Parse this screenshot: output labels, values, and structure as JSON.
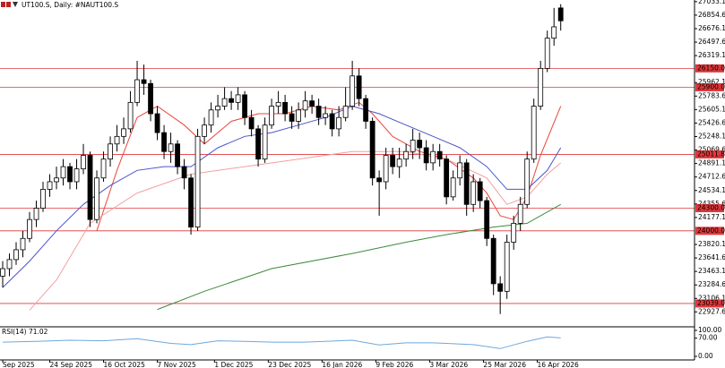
{
  "chart_data": {
    "type": "candlestick",
    "title": "UT100.S, Daily: #NAUT100.S",
    "open": [
      23400,
      23500,
      23620,
      23750,
      23900,
      24150,
      24300,
      24550,
      24650,
      24700,
      24850,
      24650,
      24820,
      25000,
      24150,
      24700,
      24950,
      25150,
      25250,
      25350,
      25700,
      26000,
      25950,
      25550,
      25300,
      25050,
      25150,
      24850,
      24700,
      24050,
      25250,
      25400,
      25600,
      25650,
      25750,
      25700,
      25800,
      25500,
      25350,
      24950,
      25400,
      25650,
      25700,
      25550,
      25450,
      25600,
      25720,
      25650,
      25500,
      25550,
      25350,
      25500,
      25650,
      26050,
      25750,
      25450,
      24700,
      24650,
      25000,
      24850,
      24950,
      25050,
      25200,
      25100,
      24900,
      25050,
      24950,
      24450,
      24700,
      24900,
      24350,
      24650,
      24400,
      23900,
      23300,
      23200,
      23850,
      24100,
      24350,
      24950,
      25650,
      26150,
      26550,
      26950
    ],
    "high": [
      23600,
      23700,
      23850,
      24000,
      24250,
      24400,
      24650,
      24750,
      24850,
      24950,
      24900,
      24950,
      25150,
      25050,
      24800,
      25050,
      25250,
      25400,
      25500,
      25850,
      26250,
      26200,
      26000,
      25650,
      25400,
      25300,
      25200,
      24950,
      24750,
      25350,
      25500,
      25700,
      25800,
      25900,
      25850,
      25900,
      25850,
      25600,
      25400,
      25500,
      25750,
      25850,
      25800,
      25650,
      25700,
      25850,
      25800,
      25750,
      25650,
      25600,
      25650,
      25900,
      26250,
      26150,
      25800,
      25500,
      24800,
      25100,
      25100,
      25100,
      25150,
      25350,
      25300,
      25200,
      25150,
      25150,
      25000,
      24800,
      25000,
      24950,
      24750,
      24700,
      24450,
      23950,
      23400,
      23950,
      24200,
      24450,
      25050,
      25750,
      26250,
      26650,
      26950,
      27000
    ],
    "low": [
      23250,
      23400,
      23550,
      23650,
      23850,
      24050,
      24250,
      24450,
      24550,
      24600,
      24550,
      24550,
      24750,
      24050,
      24100,
      24650,
      24850,
      25050,
      25150,
      25300,
      25650,
      25800,
      25450,
      25200,
      24950,
      24900,
      24750,
      24550,
      23950,
      24000,
      25150,
      25300,
      25500,
      25600,
      25600,
      25600,
      25400,
      25250,
      24850,
      24900,
      25350,
      25550,
      25450,
      25350,
      25350,
      25500,
      25550,
      25400,
      25400,
      25250,
      25250,
      25450,
      25600,
      25650,
      25350,
      24600,
      24200,
      24550,
      24750,
      24700,
      24850,
      24950,
      24950,
      24800,
      24800,
      24850,
      24350,
      24400,
      24600,
      24200,
      24250,
      24300,
      23800,
      23150,
      22900,
      23100,
      23750,
      24000,
      24300,
      24900,
      25600,
      26100,
      26450,
      26650
    ],
    "close": [
      23500,
      23620,
      23750,
      23900,
      24150,
      24300,
      24550,
      24650,
      24700,
      24850,
      24650,
      24820,
      25000,
      24150,
      24700,
      24950,
      25150,
      25250,
      25350,
      25700,
      26000,
      25950,
      25550,
      25300,
      25050,
      25150,
      24850,
      24700,
      24050,
      25250,
      25400,
      25600,
      25650,
      25750,
      25700,
      25800,
      25500,
      25350,
      24950,
      25400,
      25650,
      25700,
      25550,
      25450,
      25600,
      25720,
      25650,
      25500,
      25550,
      25350,
      25500,
      25650,
      26050,
      25750,
      25450,
      24700,
      24650,
      25000,
      24850,
      24950,
      25050,
      25200,
      25100,
      24900,
      25050,
      24950,
      24450,
      24700,
      24900,
      24350,
      24650,
      24400,
      23900,
      23300,
      23200,
      23850,
      24100,
      24350,
      24950,
      25650,
      26150,
      26550,
      26700,
      26780
    ],
    "up_color": "#ffffff",
    "down_color": "#000000",
    "xlim": [
      -0.4,
      102.9
    ],
    "xticks": [
      {
        "value": 0,
        "label": "Sep 2025"
      },
      {
        "value": 7,
        "label": "24 Sep 2025"
      },
      {
        "value": 15,
        "label": "16 Oct 2025"
      },
      {
        "value": 23,
        "label": "7 Nov 2025"
      },
      {
        "value": 31.5,
        "label": "1 Dec 2025"
      },
      {
        "value": 39.5,
        "label": "23 Dec 2025"
      },
      {
        "value": 47.5,
        "label": "16 Jan 2026"
      },
      {
        "value": 55.5,
        "label": "9 Feb 2026"
      },
      {
        "value": 63.5,
        "label": "3 Mar 2026"
      },
      {
        "value": 71.5,
        "label": "25 Mar 2026"
      },
      {
        "value": 79.5,
        "label": "16 Apr 2026"
      }
    ],
    "ylim": [
      22742,
      27055
    ],
    "yticks": [
      27033.1,
      26854.6,
      26676.1,
      26497.6,
      26319.1,
      25962.1,
      25783.6,
      25605.1,
      25426.6,
      25248.1,
      25069.6,
      24891.1,
      24712.6,
      24534.1,
      24355.6,
      24177.1,
      23820.1,
      23641.6,
      23463.1,
      23284.6,
      23106.1,
      22927.6
    ],
    "levels": {
      "color": "#e0383b",
      "values": [
        {
          "value": 26150,
          "label": "26150.0"
        },
        {
          "value": 25900,
          "label": "25900.0"
        },
        {
          "value": 25011.8,
          "label": "25011.8"
        },
        {
          "value": 24300,
          "label": "24300.0"
        },
        {
          "value": 24000,
          "label": "24000.0"
        },
        {
          "value": 23039,
          "label": "23039.0"
        }
      ]
    },
    "overlays": [
      {
        "color": "#e8453c",
        "x": [
          14,
          17,
          20,
          23,
          27,
          30,
          34,
          38,
          42,
          46,
          50,
          53,
          55,
          58,
          62,
          66,
          70,
          72,
          74,
          76,
          78,
          80,
          83
        ],
        "values": [
          24000,
          24800,
          25500,
          25650,
          25400,
          25150,
          25450,
          25550,
          25550,
          25650,
          25600,
          25700,
          25550,
          25250,
          25050,
          24950,
          24700,
          24500,
          24200,
          24150,
          24450,
          25000,
          25650
        ]
      },
      {
        "color": "#4a55c8",
        "x": [
          0,
          4,
          8,
          12,
          16,
          20,
          24,
          28,
          32,
          36,
          40,
          44,
          48,
          52,
          56,
          60,
          64,
          68,
          72,
          75,
          78,
          81,
          83
        ],
        "values": [
          23250,
          23600,
          24000,
          24350,
          24600,
          24800,
          24850,
          24850,
          25100,
          25250,
          25300,
          25400,
          25500,
          25650,
          25550,
          25400,
          25250,
          25100,
          24850,
          24550,
          24550,
          24800,
          25100
        ]
      },
      {
        "color": "#f2a0a0",
        "x": [
          4,
          8,
          13,
          20,
          28,
          36,
          44,
          52,
          60,
          66,
          72,
          75,
          78,
          81,
          83
        ],
        "values": [
          22950,
          23350,
          24100,
          24500,
          24750,
          24850,
          24950,
          25050,
          25050,
          24950,
          24700,
          24350,
          24450,
          24750,
          24900
        ]
      },
      {
        "color": "#3c8a3c",
        "x": [
          23,
          30,
          40,
          52,
          60,
          66,
          73,
          78,
          83
        ],
        "values": [
          22960,
          23200,
          23500,
          23700,
          23850,
          23950,
          24050,
          24100,
          24350
        ]
      }
    ],
    "indicator": {
      "type": "line",
      "title": "RSI(14) 71.02",
      "color": "#6fa8dc",
      "x": [
        0,
        5,
        10,
        15,
        20,
        25,
        28,
        32,
        36,
        40,
        45,
        52,
        56,
        60,
        64,
        70,
        74,
        78,
        81,
        83
      ],
      "values": [
        55,
        58,
        62,
        60,
        68,
        50,
        45,
        60,
        58,
        55,
        55,
        62,
        44,
        52,
        52,
        45,
        30,
        58,
        75,
        71
      ],
      "ylim": [
        0,
        100
      ],
      "yticks": [
        {
          "value": 100,
          "label": "100.00"
        },
        {
          "value": 70,
          "label": "70.00"
        },
        {
          "value": 0,
          "label": "0.00"
        }
      ]
    }
  }
}
